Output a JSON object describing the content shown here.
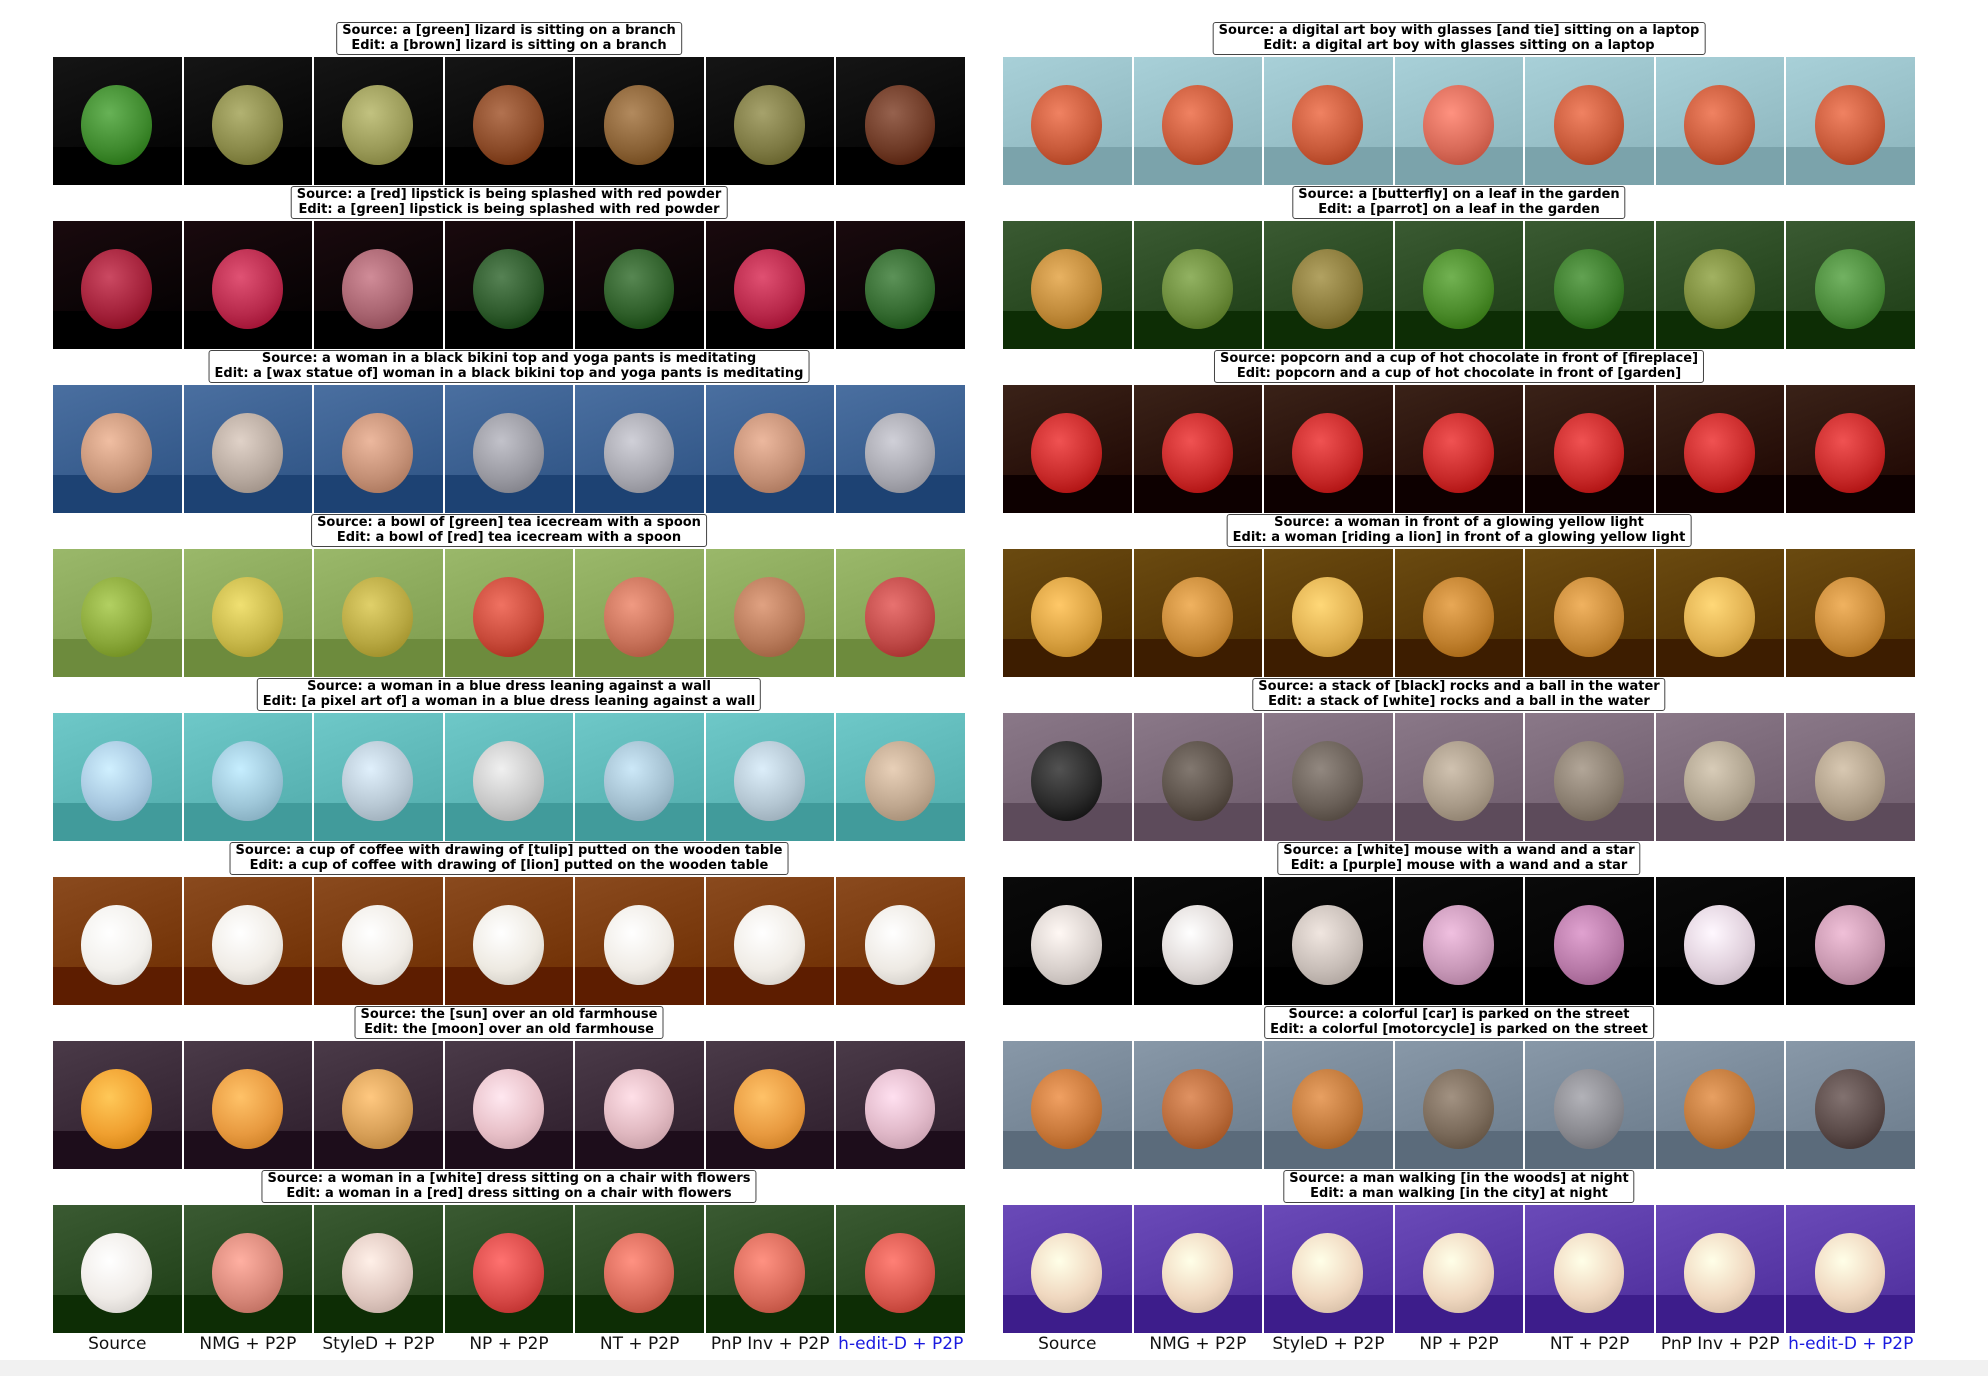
{
  "methods": [
    "Source",
    "NMG + P2P",
    "StyleD + P2P",
    "NP + P2P",
    "NT + P2P",
    "PnP Inv + P2P",
    "h-edit-D + P2P"
  ],
  "highlight_color": "#1a1adf",
  "left_examples": [
    {
      "source": "Source: a [green] lizard is sitting on a branch",
      "edit": "Edit: a [brown] lizard is sitting on a branch",
      "palette": [
        "#3f8a2e",
        "#8a8a4a",
        "#9a9a58",
        "#8a4a28",
        "#8a6236",
        "#7e7a44",
        "#6e3a26"
      ],
      "bg": "#151515"
    },
    {
      "source": "Source: a [red] lipstick is being splashed with red powder",
      "edit": "Edit: a [green] lipstick is being splashed with red powder",
      "palette": [
        "#a3213a",
        "#b82a4c",
        "#a86470",
        "#2e5a2c",
        "#2f5f2a",
        "#b8284a",
        "#346a30"
      ],
      "bg": "#1a0a0e"
    },
    {
      "source": "Source: a woman in a black bikini top and yoga pants is meditating",
      "edit": "Edit: a [wax statue of] woman in a black bikini top and yoga pants is meditating",
      "palette": [
        "#c8967a",
        "#b8aaa0",
        "#c49076",
        "#9a9aa2",
        "#a8a8b0",
        "#c49076",
        "#a8a8b0"
      ],
      "bg": "#4a6fa0"
    },
    {
      "source": "Source: a bowl of [green] tea icecream with a spoon",
      "edit": "Edit: a bowl of [red] tea icecream with a spoon",
      "palette": [
        "#8aa83a",
        "#c8b84a",
        "#b8a842",
        "#c84a3a",
        "#c8725a",
        "#b87a5a",
        "#c04a48"
      ],
      "bg": "#9ab86a"
    },
    {
      "source": "Source: a woman in a blue dress leaning against a wall",
      "edit": "Edit: [a pixel art of] a woman in a blue dress leaning against a wall",
      "palette": [
        "#a8c8e0",
        "#9ec6d8",
        "#b8c8d4",
        "#c8c8c8",
        "#a4c0d0",
        "#b4c6d2",
        "#c0a890"
      ],
      "bg": "#6ec8c8"
    },
    {
      "source": "Source: a cup of coffee with drawing of [tulip] putted on the wooden table",
      "edit": "Edit: a cup of coffee with drawing of [lion] putted on the wooden table",
      "palette": [
        "#f2f0ec",
        "#f0ece6",
        "#f0ece6",
        "#eeeae2",
        "#f0ece6",
        "#f0ece6",
        "#eeeae4"
      ],
      "bg": "#8a4a1e"
    },
    {
      "source": "Source: the [sun] over an old farmhouse",
      "edit": "Edit: the [moon] over an old farmhouse",
      "palette": [
        "#f0a030",
        "#e89a40",
        "#d8a058",
        "#e8c0c8",
        "#e0b8c0",
        "#e89a40",
        "#e0b8c8"
      ],
      "bg": "#4a3a48"
    },
    {
      "source": "Source: a woman in a [white] dress sitting on a chair with flowers",
      "edit": "Edit: a woman in a [red] dress sitting on a chair with flowers",
      "palette": [
        "#f0ece8",
        "#d8887a",
        "#e0c8c0",
        "#d84a48",
        "#d86a5a",
        "#d86a5a",
        "#d8584e"
      ],
      "bg": "#3a5a32"
    }
  ],
  "right_examples": [
    {
      "source": "Source: a digital art boy with glasses [and tie] sitting on a laptop",
      "edit": "Edit: a digital art boy with glasses sitting on a laptop",
      "palette": [
        "#c85a3a",
        "#c85a3a",
        "#c85a3a",
        "#d86a58",
        "#c85a3a",
        "#c85a3a",
        "#c85a3a"
      ],
      "bg": "#a8d0d8"
    },
    {
      "source": "Source: a [butterfly] on a leaf in the garden",
      "edit": "Edit: a [parrot] on a leaf in the garden",
      "palette": [
        "#c08a3a",
        "#6a8a3a",
        "#8a7a3a",
        "#4a8a2a",
        "#3a7a2a",
        "#7a8a3a",
        "#4a8a3a"
      ],
      "bg": "#3a5a32"
    },
    {
      "source": "Source: popcorn and a cup of hot chocolate in front of [fireplace]",
      "edit": "Edit: popcorn and a cup of hot chocolate in front of [garden]",
      "palette": [
        "#c82a2a",
        "#c82a2a",
        "#c82a2a",
        "#c82a2a",
        "#c82a2a",
        "#c82a2a",
        "#c82a2a"
      ],
      "bg": "#3a2218"
    },
    {
      "source": "Source: a woman in front of a glowing yellow light",
      "edit": "Edit: a woman [riding a lion] in front of a glowing yellow light",
      "palette": [
        "#d8a040",
        "#c88a38",
        "#e0b050",
        "#c0802e",
        "#c88a38",
        "#e0b050",
        "#c88a38"
      ],
      "bg": "#6a4a10"
    },
    {
      "source": "Source: a stack of [black] rocks and a ball in the water",
      "edit": "Edit: a stack of [white] rocks and a ball in the water",
      "palette": [
        "#2a2a2a",
        "#5a5048",
        "#6a6058",
        "#a89a88",
        "#8a7e70",
        "#b0a490",
        "#b0a08a"
      ],
      "bg": "#8a7888"
    },
    {
      "source": "Source: a [white] mouse with a wand and a star",
      "edit": "Edit: a [purple] mouse with a wand and a star",
      "palette": [
        "#d8d0cc",
        "#e0dad8",
        "#c8beb8",
        "#c898b8",
        "#b87aa8",
        "#e0d0dc",
        "#c898b0"
      ],
      "bg": "#0a0a0a"
    },
    {
      "source": "Source: a colorful [car] is parked on the street",
      "edit": "Edit: a colorful [motorcycle] is parked on the street",
      "palette": [
        "#c8783a",
        "#b86a3a",
        "#c0783a",
        "#7a6a5a",
        "#8a8a90",
        "#c0783a",
        "#5a4a48"
      ],
      "bg": "#8898a8"
    },
    {
      "source": "Source: a man walking [in the woods] at night",
      "edit": "Edit: a man walking [in the city] at night",
      "palette": [
        "#f0d8c0",
        "#f0d8c0",
        "#f0d8c0",
        "#f0d8c0",
        "#f0d8c0",
        "#f0d8c0",
        "#f0d8c0"
      ],
      "bg": "#6a4ab8"
    }
  ]
}
